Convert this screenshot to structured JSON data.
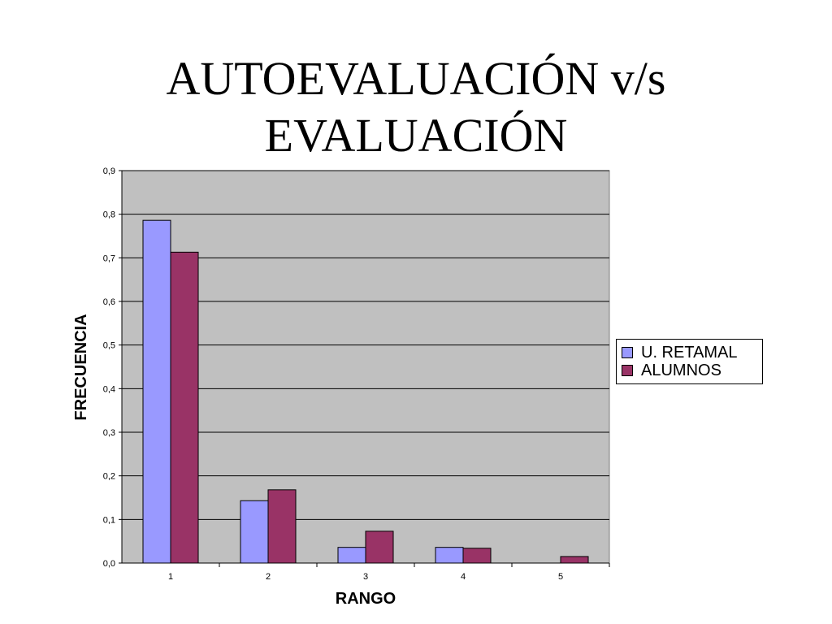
{
  "title": {
    "line1": "AUTOEVALUACIÓN v/s",
    "line2": "EVALUACIÓN"
  },
  "chart_data": {
    "type": "bar",
    "categories": [
      "1",
      "2",
      "3",
      "4",
      "5"
    ],
    "series": [
      {
        "name": "U. RETAMAL",
        "color": "#9999FF",
        "values": [
          0.786,
          0.143,
          0.036,
          0.036,
          0.0
        ]
      },
      {
        "name": "ALUMNOS",
        "color": "#993366",
        "values": [
          0.713,
          0.168,
          0.073,
          0.034,
          0.015
        ]
      }
    ],
    "xlabel": "RANGO",
    "ylabel": "FRECUENCIA",
    "ylim": [
      0,
      0.9
    ],
    "yticks": [
      "0,0",
      "0,1",
      "0,2",
      "0,3",
      "0,4",
      "0,5",
      "0,6",
      "0,7",
      "0,8",
      "0,9"
    ],
    "plot_background": "#C0C0C0",
    "grid": true,
    "legend_position": "right"
  }
}
